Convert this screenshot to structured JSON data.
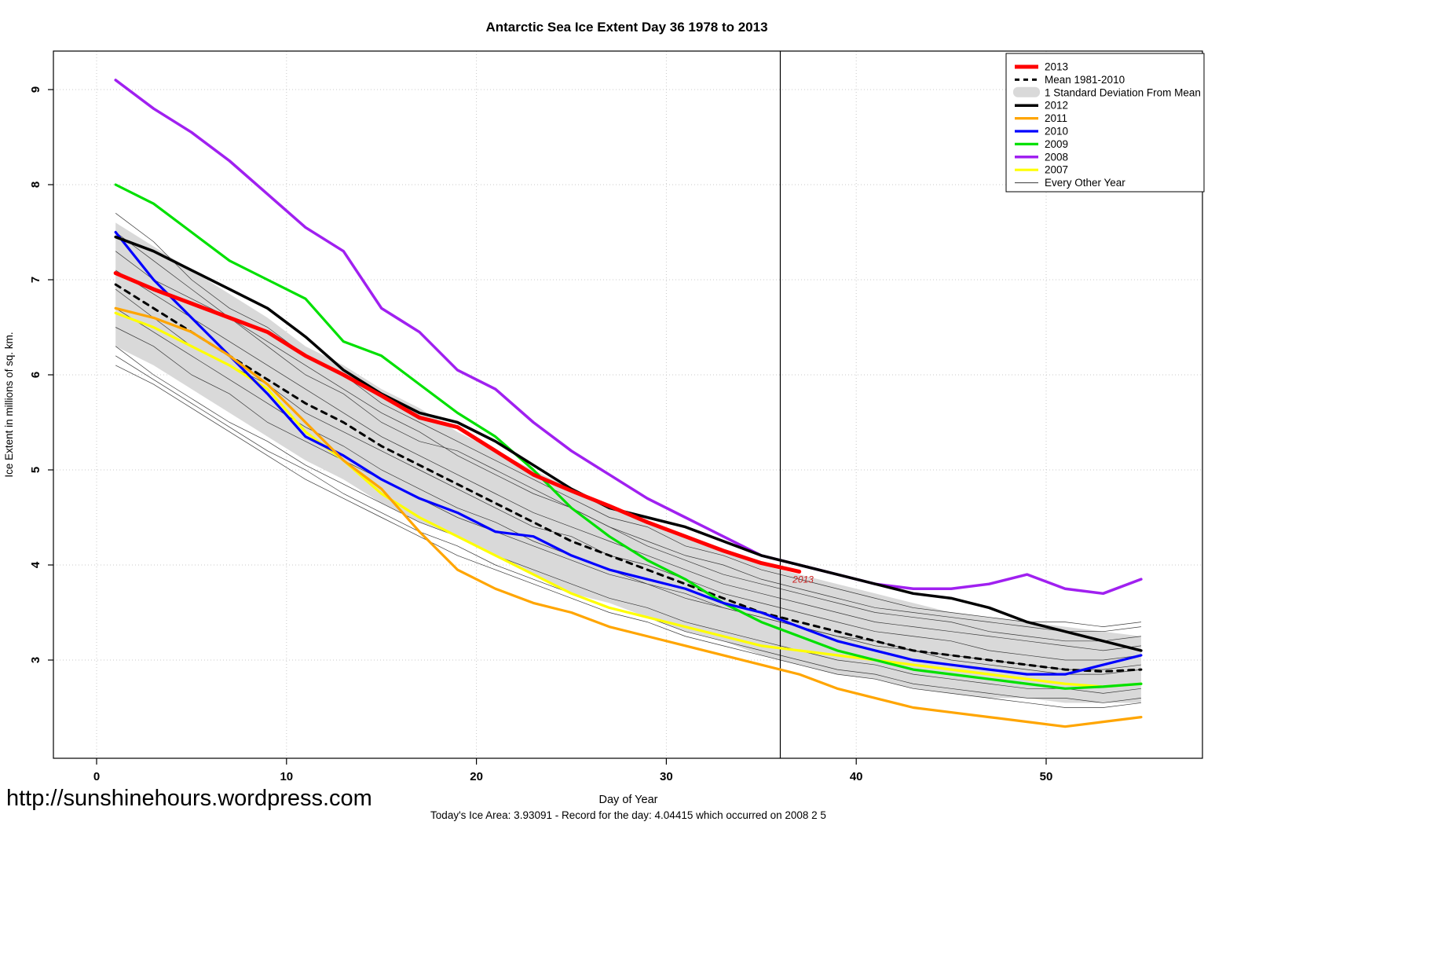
{
  "page": {
    "url_text": "http://sunshinehours.wordpress.com",
    "footer": "Today's Ice Area: 3.93091  - Record for the day: 4.04415 which occurred on 2008 2 5"
  },
  "chart_data": {
    "type": "line",
    "title": "Antarctic Sea Ice Extent Day 36 1978 to 2013",
    "xlabel": "Day of Year",
    "ylabel": "Ice Extent in millions of sq. km.",
    "xlim": [
      0,
      58
    ],
    "ylim": [
      2.0,
      9.4
    ],
    "xticks": [
      0,
      10,
      20,
      30,
      40,
      50
    ],
    "yticks": [
      3,
      4,
      5,
      6,
      7,
      8,
      9
    ],
    "grid": true,
    "vline_x": 36,
    "legend_position": "top-right",
    "legend": [
      "2013",
      "Mean 1981-2010",
      "1 Standard Deviation From Mean",
      "2012",
      "2011",
      "2010",
      "2009",
      "2008",
      "2007",
      "Every Other Year"
    ],
    "x": [
      1,
      3,
      5,
      7,
      9,
      11,
      13,
      15,
      17,
      19,
      21,
      23,
      25,
      27,
      29,
      31,
      33,
      35,
      37,
      39,
      41,
      43,
      45,
      47,
      49,
      51,
      53,
      55
    ],
    "band": {
      "label": "1 Standard Deviation From Mean",
      "color": "#d9d9d9",
      "upper": [
        7.6,
        7.35,
        7.1,
        6.85,
        6.6,
        6.3,
        6.1,
        5.85,
        5.65,
        5.4,
        5.2,
        5.0,
        4.8,
        4.6,
        4.45,
        4.3,
        4.15,
        4.0,
        3.9,
        3.8,
        3.7,
        3.6,
        3.5,
        3.45,
        3.4,
        3.35,
        3.3,
        3.25
      ],
      "lower": [
        6.3,
        6.1,
        5.85,
        5.6,
        5.35,
        5.1,
        4.9,
        4.65,
        4.45,
        4.3,
        4.1,
        3.9,
        3.7,
        3.6,
        3.45,
        3.3,
        3.2,
        3.05,
        2.95,
        2.85,
        2.8,
        2.7,
        2.65,
        2.6,
        2.6,
        2.55,
        2.55,
        2.55
      ]
    },
    "background_years": {
      "label": "Every Other Year",
      "color": "#3a3a3a",
      "width": 0.7,
      "lines": [
        [
          7.7,
          7.4,
          7.0,
          6.7,
          6.5,
          6.2,
          6.0,
          5.7,
          5.5,
          5.3,
          5.1,
          4.9,
          4.7,
          4.5,
          4.4,
          4.2,
          4.1,
          3.95,
          3.85,
          3.75,
          3.65,
          3.55,
          3.5,
          3.45,
          3.4,
          3.4,
          3.35,
          3.4
        ],
        [
          7.3,
          7.0,
          6.8,
          6.6,
          6.3,
          6.0,
          5.8,
          5.5,
          5.3,
          5.2,
          5.0,
          4.8,
          4.6,
          4.4,
          4.2,
          4.05,
          3.9,
          3.8,
          3.7,
          3.6,
          3.5,
          3.45,
          3.4,
          3.3,
          3.25,
          3.2,
          3.2,
          3.25
        ],
        [
          6.9,
          6.6,
          6.3,
          6.1,
          5.9,
          5.6,
          5.4,
          5.2,
          5.0,
          4.8,
          4.6,
          4.4,
          4.3,
          4.1,
          4.0,
          3.85,
          3.7,
          3.6,
          3.5,
          3.4,
          3.3,
          3.25,
          3.2,
          3.1,
          3.05,
          3.0,
          3.0,
          3.05
        ],
        [
          6.5,
          6.3,
          6.0,
          5.8,
          5.5,
          5.3,
          5.1,
          4.9,
          4.7,
          4.5,
          4.35,
          4.2,
          4.05,
          3.9,
          3.8,
          3.65,
          3.55,
          3.45,
          3.35,
          3.25,
          3.15,
          3.1,
          3.0,
          2.95,
          2.9,
          2.85,
          2.85,
          2.9
        ],
        [
          6.3,
          6.0,
          5.75,
          5.5,
          5.3,
          5.05,
          4.85,
          4.65,
          4.45,
          4.3,
          4.1,
          3.95,
          3.8,
          3.65,
          3.55,
          3.4,
          3.3,
          3.2,
          3.1,
          3.0,
          2.95,
          2.85,
          2.8,
          2.75,
          2.7,
          2.7,
          2.65,
          2.7
        ],
        [
          6.1,
          5.9,
          5.65,
          5.4,
          5.15,
          4.9,
          4.7,
          4.5,
          4.3,
          4.1,
          3.95,
          3.8,
          3.65,
          3.5,
          3.4,
          3.25,
          3.15,
          3.05,
          2.95,
          2.85,
          2.8,
          2.7,
          2.65,
          2.6,
          2.55,
          2.5,
          2.5,
          2.55
        ],
        [
          7.1,
          6.85,
          6.6,
          6.35,
          6.1,
          5.85,
          5.6,
          5.35,
          5.15,
          4.95,
          4.75,
          4.55,
          4.4,
          4.25,
          4.1,
          3.95,
          3.8,
          3.7,
          3.6,
          3.5,
          3.4,
          3.35,
          3.3,
          3.25,
          3.2,
          3.15,
          3.1,
          3.15
        ],
        [
          6.7,
          6.45,
          6.2,
          5.95,
          5.7,
          5.45,
          5.25,
          5.0,
          4.8,
          4.6,
          4.45,
          4.25,
          4.1,
          3.95,
          3.8,
          3.7,
          3.55,
          3.45,
          3.35,
          3.25,
          3.2,
          3.1,
          3.05,
          3.0,
          2.95,
          2.9,
          2.9,
          2.95
        ],
        [
          7.5,
          7.2,
          6.9,
          6.6,
          6.35,
          6.1,
          5.85,
          5.6,
          5.4,
          5.15,
          4.95,
          4.75,
          4.6,
          4.4,
          4.25,
          4.1,
          4.0,
          3.85,
          3.75,
          3.65,
          3.55,
          3.5,
          3.45,
          3.4,
          3.35,
          3.3,
          3.3,
          3.35
        ],
        [
          6.2,
          5.95,
          5.7,
          5.45,
          5.2,
          5.0,
          4.75,
          4.55,
          4.35,
          4.2,
          4.0,
          3.85,
          3.7,
          3.55,
          3.45,
          3.3,
          3.2,
          3.1,
          3.0,
          2.9,
          2.85,
          2.75,
          2.7,
          2.65,
          2.6,
          2.6,
          2.55,
          2.6
        ]
      ]
    },
    "series": [
      {
        "name": "Mean 1981-2010",
        "color": "#000000",
        "width": 3,
        "dash": "7 7",
        "values": [
          6.95,
          6.7,
          6.45,
          6.2,
          5.95,
          5.7,
          5.5,
          5.25,
          5.05,
          4.85,
          4.65,
          4.45,
          4.25,
          4.1,
          3.95,
          3.8,
          3.65,
          3.5,
          3.4,
          3.3,
          3.2,
          3.1,
          3.05,
          3.0,
          2.95,
          2.9,
          2.88,
          2.9
        ]
      },
      {
        "name": "2007",
        "color": "#ffff00",
        "width": 3.2,
        "values": [
          6.65,
          6.5,
          6.3,
          6.1,
          5.85,
          5.4,
          5.1,
          4.75,
          4.5,
          4.3,
          4.1,
          3.9,
          3.7,
          3.55,
          3.45,
          3.35,
          3.25,
          3.15,
          3.1,
          3.05,
          3.0,
          2.95,
          2.9,
          2.85,
          2.8,
          2.75,
          2.72,
          2.75
        ]
      },
      {
        "name": "2009",
        "color": "#00e000",
        "width": 3.2,
        "values": [
          8.0,
          7.8,
          7.5,
          7.2,
          7.0,
          6.8,
          6.35,
          6.2,
          5.9,
          5.6,
          5.35,
          5.0,
          4.6,
          4.3,
          4.05,
          3.85,
          3.6,
          3.4,
          3.25,
          3.1,
          3.0,
          2.9,
          2.85,
          2.8,
          2.75,
          2.7,
          2.72,
          2.75
        ]
      },
      {
        "name": "2008",
        "color": "#a020f0",
        "width": 3.5,
        "values": [
          9.1,
          8.8,
          8.55,
          8.25,
          7.9,
          7.55,
          7.3,
          6.7,
          6.45,
          6.05,
          5.85,
          5.5,
          5.2,
          4.95,
          4.7,
          4.5,
          4.3,
          4.1,
          4.0,
          3.9,
          3.8,
          3.75,
          3.75,
          3.8,
          3.9,
          3.75,
          3.7,
          3.85
        ]
      },
      {
        "name": "2010",
        "color": "#0000ff",
        "width": 3.2,
        "values": [
          7.5,
          7.0,
          6.6,
          6.2,
          5.8,
          5.35,
          5.15,
          4.9,
          4.7,
          4.55,
          4.35,
          4.3,
          4.1,
          3.95,
          3.85,
          3.75,
          3.6,
          3.5,
          3.35,
          3.2,
          3.1,
          3.0,
          2.95,
          2.9,
          2.85,
          2.85,
          2.95,
          3.05
        ]
      },
      {
        "name": "2011",
        "color": "#ffa500",
        "width": 3.2,
        "values": [
          6.7,
          6.6,
          6.45,
          6.2,
          5.9,
          5.5,
          5.1,
          4.8,
          4.35,
          3.95,
          3.75,
          3.6,
          3.5,
          3.35,
          3.25,
          3.15,
          3.05,
          2.95,
          2.85,
          2.7,
          2.6,
          2.5,
          2.45,
          2.4,
          2.35,
          2.3,
          2.35,
          2.4
        ]
      },
      {
        "name": "2012",
        "color": "#000000",
        "width": 3.5,
        "values": [
          7.45,
          7.3,
          7.1,
          6.9,
          6.7,
          6.4,
          6.05,
          5.8,
          5.6,
          5.5,
          5.3,
          5.05,
          4.8,
          4.6,
          4.5,
          4.4,
          4.25,
          4.1,
          4.0,
          3.9,
          3.8,
          3.7,
          3.65,
          3.55,
          3.4,
          3.3,
          3.2,
          3.1
        ]
      },
      {
        "name": "2013",
        "color": "#ff0000",
        "width": 5,
        "x": [
          1,
          3,
          5,
          7,
          9,
          11,
          13,
          15,
          17,
          19,
          21,
          23,
          25,
          27,
          29,
          31,
          33,
          35,
          37
        ],
        "values": [
          7.07,
          6.9,
          6.75,
          6.6,
          6.45,
          6.2,
          6.0,
          5.78,
          5.55,
          5.45,
          5.2,
          4.95,
          4.78,
          4.62,
          4.45,
          4.3,
          4.15,
          4.02,
          3.93
        ]
      }
    ],
    "annotation": {
      "text": "2013",
      "day": 36.4,
      "value": 3.93,
      "color": "#cc2222"
    }
  }
}
